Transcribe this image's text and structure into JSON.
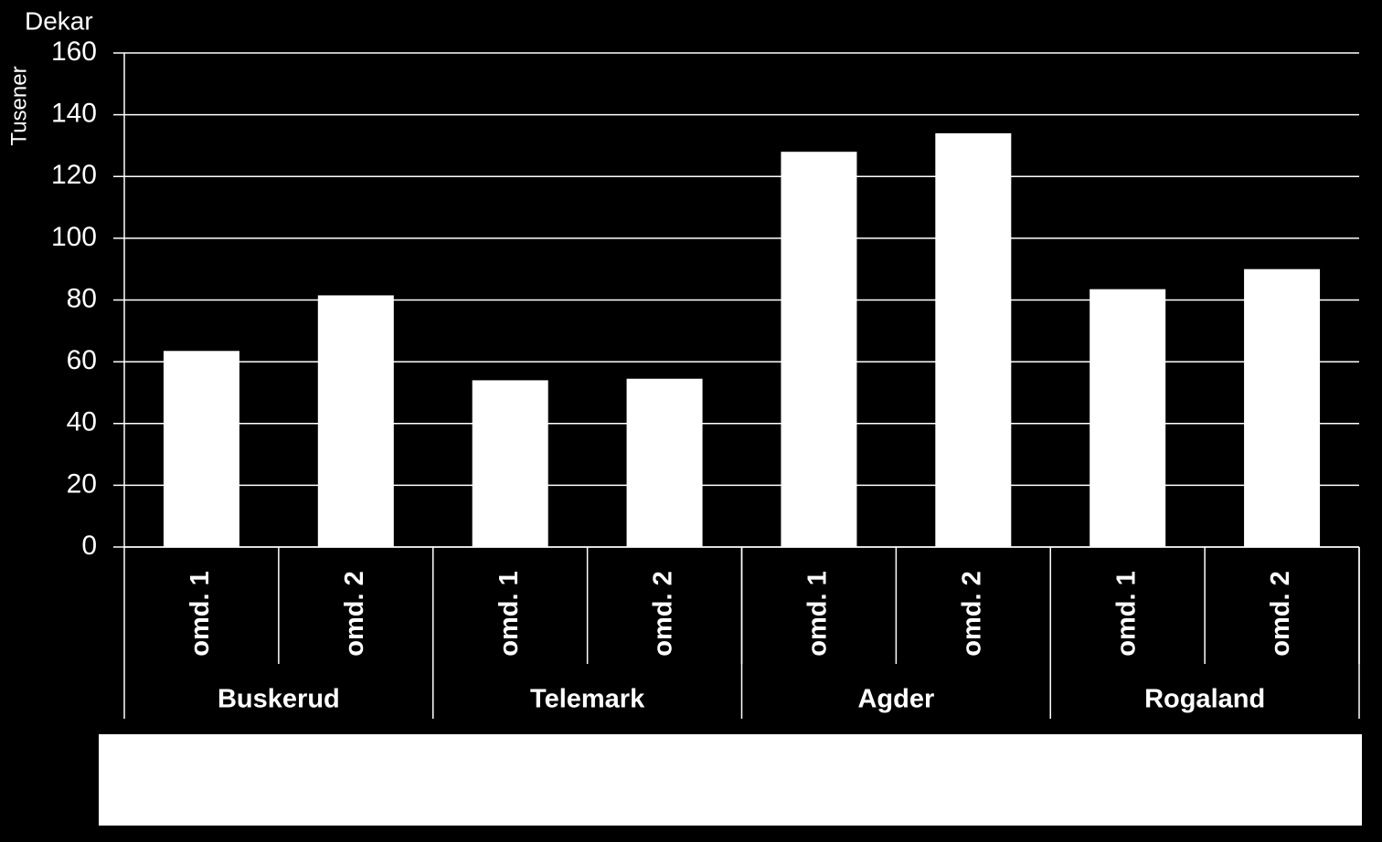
{
  "chart_data": {
    "type": "bar",
    "y_axis_title": "Dekar",
    "y_axis_unit": "Tusener",
    "categories": [
      "omd. 1",
      "omd. 2",
      "omd. 1",
      "omd. 2",
      "omd. 1",
      "omd. 2",
      "omd. 1",
      "omd. 2"
    ],
    "groups": [
      "Buskerud",
      "Telemark",
      "Agder",
      "Rogaland"
    ],
    "values": [
      63.5,
      81.5,
      54,
      54.5,
      128,
      134,
      83.5,
      90
    ],
    "color": "#ffffff",
    "ylim": [
      0,
      160
    ],
    "yticks": [
      0,
      20,
      40,
      60,
      80,
      100,
      120,
      140,
      160
    ],
    "grid": true
  }
}
